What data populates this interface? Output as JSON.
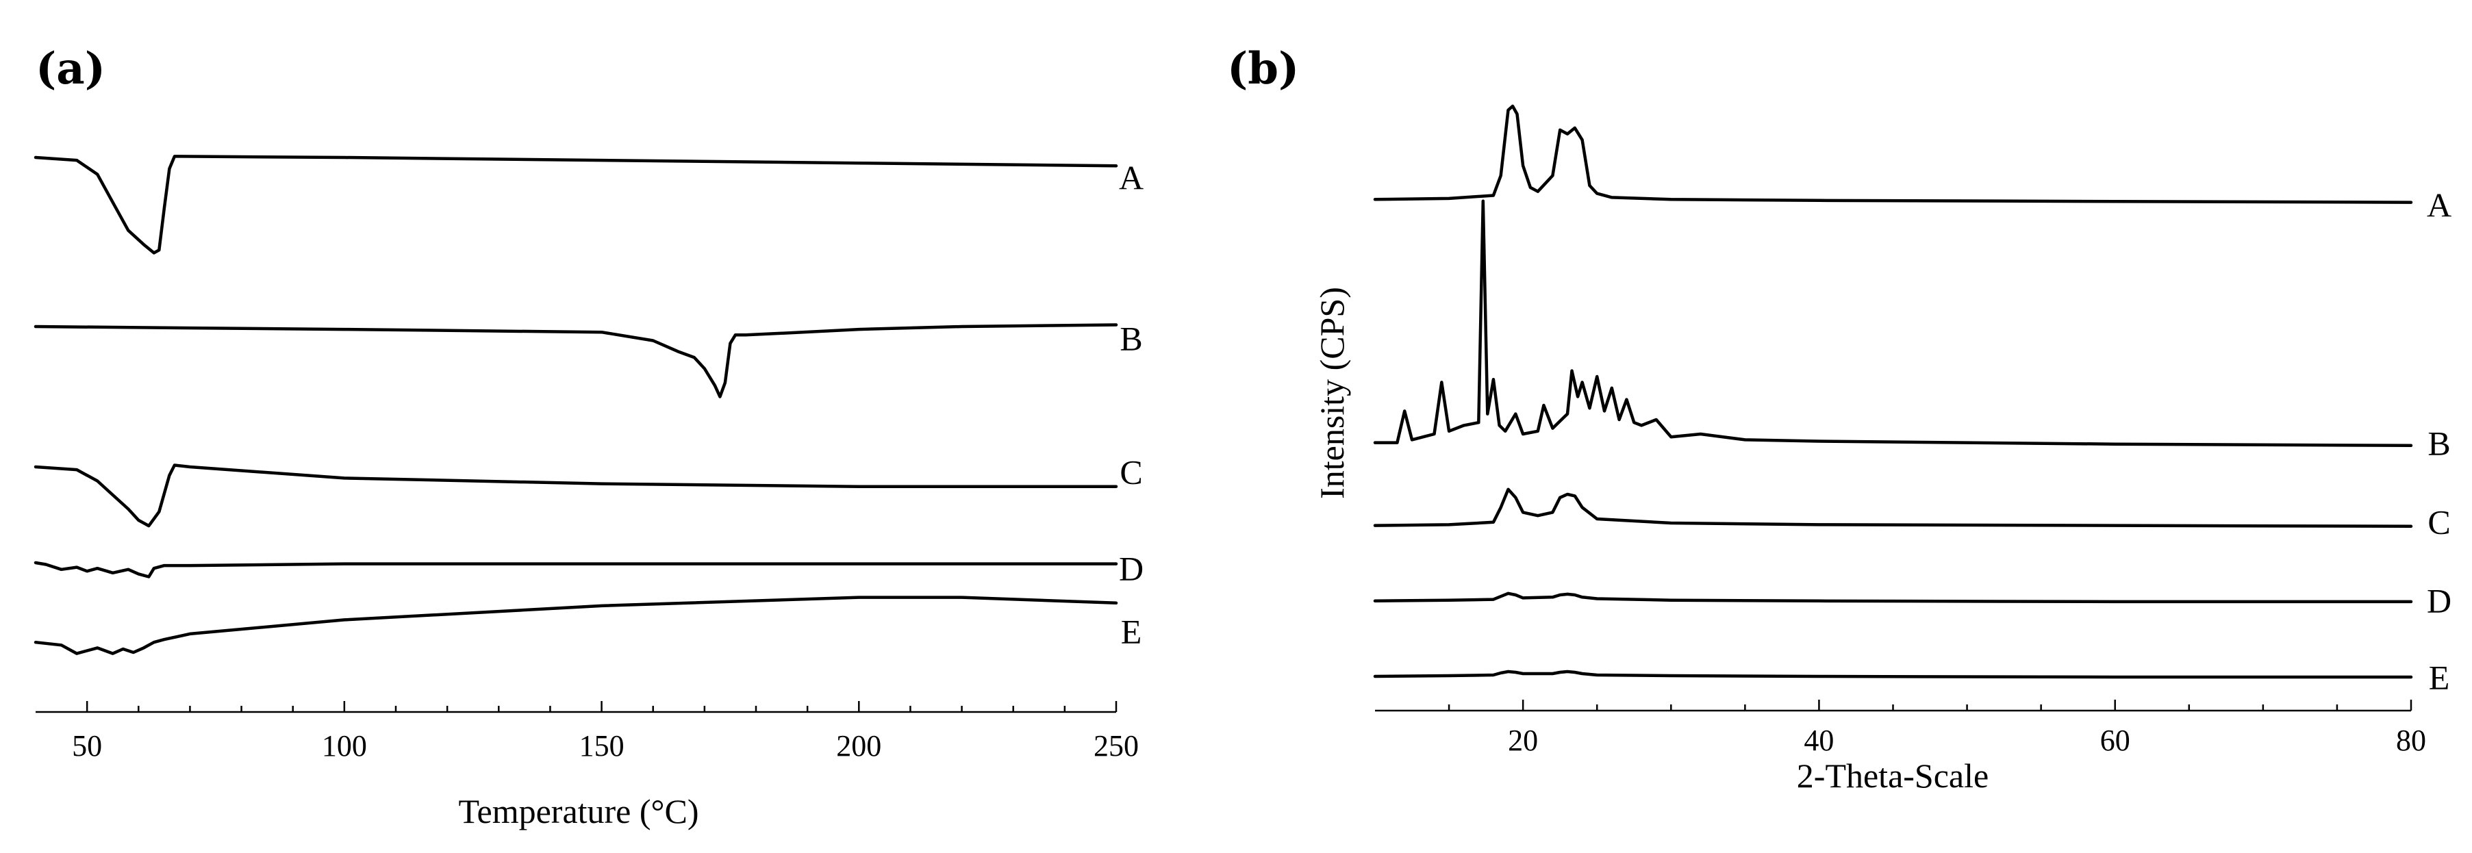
{
  "chart_data": [
    {
      "panel": "(a)",
      "type": "line",
      "subtype": "DSC thermograms (stacked, offset)",
      "xlabel": "Temperature (°C)",
      "ylabel": "",
      "xlim": [
        40,
        250
      ],
      "xticks": [
        50,
        100,
        150,
        200,
        250
      ],
      "series": [
        {
          "name": "A",
          "x": [
            40,
            48,
            52,
            55,
            58,
            61,
            63,
            64,
            65,
            66,
            67,
            68,
            100,
            150,
            200,
            250
          ],
          "y": [
            0,
            -0.05,
            -0.3,
            -0.8,
            -1.3,
            -1.55,
            -1.7,
            -1.65,
            -0.9,
            -0.2,
            0.02,
            0.02,
            0.0,
            -0.05,
            -0.1,
            -0.15
          ]
        },
        {
          "name": "B",
          "x": [
            40,
            100,
            150,
            160,
            165,
            168,
            170,
            172,
            173,
            174,
            175,
            176,
            178,
            185,
            200,
            220,
            250
          ],
          "y": [
            0,
            -0.05,
            -0.1,
            -0.25,
            -0.45,
            -0.55,
            -0.75,
            -1.05,
            -1.25,
            -1.0,
            -0.3,
            -0.15,
            -0.15,
            -0.12,
            -0.05,
            0.0,
            0.03
          ]
        },
        {
          "name": "C",
          "x": [
            40,
            48,
            52,
            55,
            58,
            60,
            62,
            64,
            66,
            67,
            70,
            100,
            150,
            200,
            250
          ],
          "y": [
            0,
            -0.05,
            -0.25,
            -0.5,
            -0.75,
            -0.95,
            -1.05,
            -0.8,
            -0.15,
            0.03,
            0.0,
            -0.2,
            -0.3,
            -0.35,
            -0.35
          ]
        },
        {
          "name": "D",
          "x": [
            40,
            42,
            45,
            48,
            50,
            52,
            55,
            58,
            60,
            62,
            63,
            65,
            70,
            100,
            150,
            200,
            250
          ],
          "y": [
            0,
            -0.03,
            -0.12,
            -0.08,
            -0.15,
            -0.1,
            -0.18,
            -0.12,
            -0.2,
            -0.25,
            -0.1,
            -0.05,
            -0.05,
            -0.02,
            -0.02,
            -0.02,
            -0.02
          ]
        },
        {
          "name": "E",
          "x": [
            40,
            45,
            48,
            50,
            52,
            55,
            57,
            59,
            61,
            63,
            65,
            70,
            100,
            150,
            200,
            220,
            250
          ],
          "y": [
            -0.1,
            -0.15,
            -0.3,
            -0.25,
            -0.2,
            -0.3,
            -0.22,
            -0.28,
            -0.2,
            -0.1,
            -0.05,
            0.05,
            0.3,
            0.55,
            0.7,
            0.7,
            0.6
          ]
        }
      ],
      "series_labels": [
        "A",
        "B",
        "C",
        "D",
        "E"
      ]
    },
    {
      "panel": "(b)",
      "type": "line",
      "subtype": "XRD diffractograms (stacked, offset)",
      "xlabel": "2-Theta-Scale",
      "ylabel": "Intensity (CPS)",
      "xlim": [
        10,
        80
      ],
      "xticks": [
        20,
        40,
        60,
        80
      ],
      "series": [
        {
          "name": "A",
          "x": [
            10,
            15,
            18,
            18.5,
            19,
            19.3,
            19.6,
            20,
            20.5,
            21,
            22,
            22.5,
            23,
            23.5,
            24,
            24.5,
            25,
            26,
            30,
            40,
            60,
            80
          ],
          "y": [
            0.3,
            0.35,
            0.5,
            1.5,
            4.8,
            5.0,
            4.6,
            2.0,
            0.9,
            0.7,
            1.5,
            3.8,
            3.6,
            3.9,
            3.3,
            1.0,
            0.6,
            0.4,
            0.3,
            0.25,
            0.2,
            0.15
          ]
        },
        {
          "name": "B",
          "x": [
            10,
            11.5,
            12,
            12.5,
            14,
            14.5,
            15,
            16,
            17,
            17.3,
            17.6,
            18,
            18.4,
            18.8,
            19.5,
            20,
            21,
            21.4,
            22,
            23,
            23.3,
            23.7,
            24,
            24.5,
            25,
            25.5,
            26,
            26.5,
            27,
            27.5,
            28,
            29,
            30,
            32,
            35,
            40,
            50,
            60,
            80
          ],
          "y": [
            0.2,
            0.2,
            1.3,
            0.3,
            0.5,
            2.3,
            0.6,
            0.8,
            0.9,
            8.6,
            1.2,
            2.4,
            0.8,
            0.6,
            1.2,
            0.5,
            0.6,
            1.5,
            0.7,
            1.2,
            2.7,
            1.8,
            2.3,
            1.4,
            2.5,
            1.3,
            2.1,
            1.0,
            1.7,
            0.9,
            0.8,
            1.0,
            0.4,
            0.5,
            0.3,
            0.25,
            0.2,
            0.15,
            0.1
          ]
        },
        {
          "name": "C",
          "x": [
            10,
            15,
            18,
            18.5,
            19,
            19.5,
            20,
            21,
            22,
            22.5,
            23,
            23.5,
            24,
            25,
            30,
            40,
            60,
            80
          ],
          "y": [
            0.1,
            0.15,
            0.3,
            1.2,
            2.3,
            1.8,
            0.9,
            0.7,
            0.9,
            1.8,
            2.0,
            1.9,
            1.2,
            0.5,
            0.25,
            0.15,
            0.1,
            0.05
          ]
        },
        {
          "name": "D",
          "x": [
            10,
            15,
            18,
            18.5,
            19,
            19.5,
            20,
            22,
            22.5,
            23,
            23.5,
            24,
            25,
            30,
            40,
            60,
            80
          ],
          "y": [
            0.1,
            0.15,
            0.2,
            0.4,
            0.6,
            0.5,
            0.3,
            0.35,
            0.5,
            0.55,
            0.5,
            0.35,
            0.25,
            0.15,
            0.1,
            0.05,
            0.05
          ]
        },
        {
          "name": "E",
          "x": [
            10,
            15,
            18,
            18.5,
            19,
            19.5,
            20,
            22,
            22.5,
            23,
            23.5,
            24,
            25,
            30,
            40,
            60,
            80
          ],
          "y": [
            0.1,
            0.15,
            0.2,
            0.35,
            0.45,
            0.4,
            0.3,
            0.3,
            0.4,
            0.45,
            0.4,
            0.3,
            0.2,
            0.15,
            0.1,
            0.05,
            0.05
          ]
        }
      ],
      "series_labels": [
        "A",
        "B",
        "C",
        "D",
        "E"
      ]
    }
  ]
}
